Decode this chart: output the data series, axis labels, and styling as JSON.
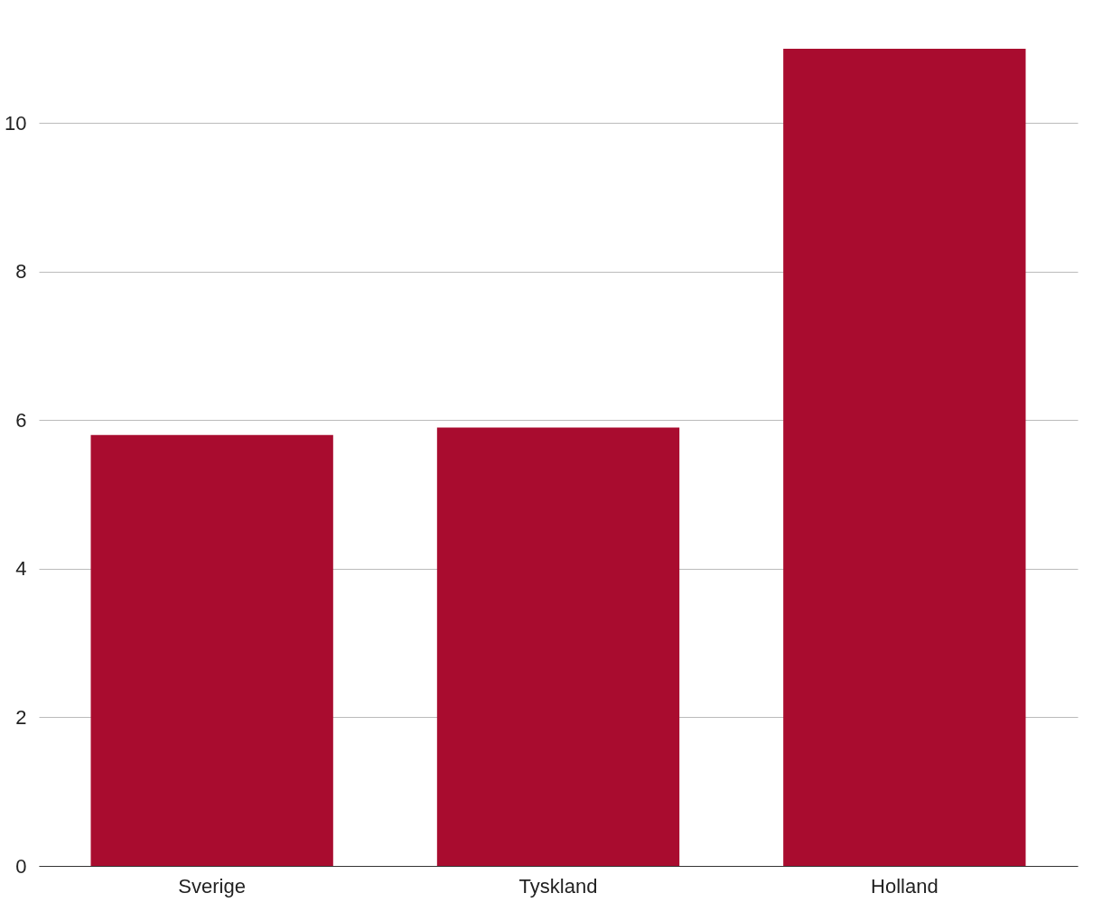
{
  "chart_data": {
    "type": "bar",
    "categories": [
      "Sverige",
      "Tyskland",
      "Holland"
    ],
    "values": [
      5.8,
      5.9,
      11.0
    ],
    "color": "#a90c2f",
    "ylim": [
      0,
      11
    ],
    "yticks": [
      0,
      2,
      4,
      6,
      8,
      10
    ],
    "grid": "y"
  }
}
